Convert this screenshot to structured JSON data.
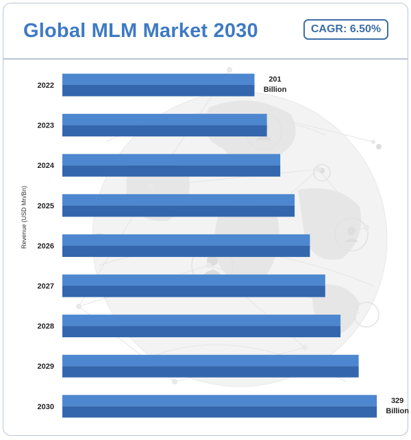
{
  "header": {
    "title": "Global MLM Market 2030",
    "cagr_label": "CAGR: 6.50%"
  },
  "colors": {
    "title": "#3e7ac4",
    "bar_top": "#4d87cf",
    "bar_bottom": "#3466ad",
    "badge_border": "#3a6ea8",
    "frame_border": "#b9c4d3"
  },
  "chart_data": {
    "type": "bar",
    "orientation": "horizontal",
    "title": "Global MLM Market 2030",
    "ylabel": "Revenue (USD Mn/Bn)",
    "categories": [
      "2022",
      "2023",
      "2024",
      "2025",
      "2026",
      "2027",
      "2028",
      "2029",
      "2030"
    ],
    "values": [
      201,
      214,
      228,
      243,
      259,
      275,
      291,
      310,
      329
    ],
    "data_labels": [
      {
        "index": 0,
        "value": "201",
        "unit": "Billion"
      },
      {
        "index": 8,
        "value": "329",
        "unit": "Billion"
      }
    ],
    "grid": false
  }
}
